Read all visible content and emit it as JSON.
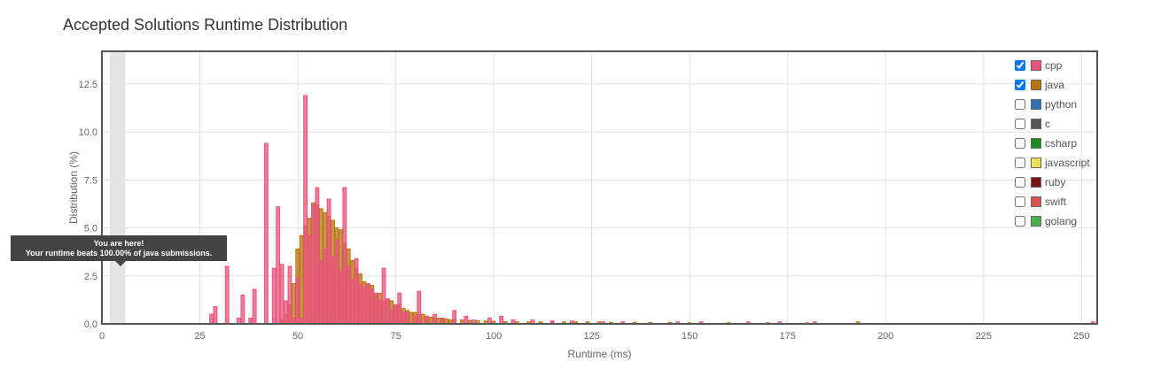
{
  "header": {
    "title": "Accepted Solutions Runtime Distribution"
  },
  "tooltip": {
    "line1": "You are here!",
    "line2": "Your runtime beats 100.00% of java submissions."
  },
  "legend": {
    "items": [
      {
        "label": "cpp",
        "color": "#e8537a",
        "checked": true
      },
      {
        "label": "java",
        "color": "#b8730f",
        "checked": true
      },
      {
        "label": "python",
        "color": "#2f6fb0",
        "checked": false
      },
      {
        "label": "c",
        "color": "#555555",
        "checked": false
      },
      {
        "label": "csharp",
        "color": "#1d8a1d",
        "checked": false
      },
      {
        "label": "javascript",
        "color": "#efe15a",
        "checked": false
      },
      {
        "label": "ruby",
        "color": "#7a1414",
        "checked": false
      },
      {
        "label": "swift",
        "color": "#d9534f",
        "checked": false
      },
      {
        "label": "golang",
        "color": "#4caf50",
        "checked": false
      }
    ]
  },
  "chart_data": {
    "type": "bar",
    "title": "Accepted Solutions Runtime Distribution",
    "xlabel": "Runtime (ms)",
    "ylabel": "Distribution (%)",
    "xlim": [
      0,
      254
    ],
    "ylim": [
      0,
      14.2
    ],
    "xticks": [
      "0",
      "25",
      "50",
      "75",
      "100",
      "125",
      "150",
      "175",
      "200",
      "225",
      "250"
    ],
    "yticks": [
      "0.0",
      "2.5",
      "5.0",
      "7.5",
      "10.0",
      "12.5"
    ],
    "grid": true,
    "legend_position": "top-right",
    "highlight_band": [
      2,
      6
    ],
    "bar_width": 1,
    "series": [
      {
        "name": "cpp",
        "color": "#e8537a",
        "x": [
          28,
          29,
          32,
          35,
          36,
          38,
          39,
          42,
          44,
          45,
          46,
          47,
          48,
          49,
          50,
          51,
          52,
          53,
          54,
          55,
          56,
          57,
          58,
          59,
          60,
          61,
          62,
          63,
          64,
          65,
          66,
          67,
          68,
          69,
          70,
          71,
          72,
          73,
          74,
          75,
          76,
          77,
          78,
          80,
          81,
          83,
          85,
          87,
          90,
          93,
          95,
          99,
          102,
          105,
          110,
          115,
          120,
          128,
          133,
          147,
          153,
          165,
          173,
          182,
          253
        ],
        "values": [
          0.5,
          0.9,
          3.0,
          0.3,
          1.5,
          0.3,
          1.8,
          9.4,
          2.9,
          6.1,
          3.1,
          1.2,
          3.0,
          0.3,
          2.4,
          0.3,
          11.9,
          4.6,
          6.2,
          7.1,
          3.3,
          3.9,
          6.5,
          3.5,
          4.4,
          2.8,
          7.1,
          3.0,
          2.3,
          3.4,
          2.1,
          1.9,
          2.1,
          1.8,
          1.6,
          1.2,
          2.9,
          1.3,
          0.7,
          1.0,
          1.6,
          0.6,
          0.6,
          0.4,
          1.7,
          0.4,
          0.5,
          0.3,
          0.7,
          0.4,
          0.2,
          0.3,
          0.4,
          0.2,
          0.2,
          0.15,
          0.15,
          0.1,
          0.1,
          0.1,
          0.1,
          0.1,
          0.1,
          0.1,
          0.1
        ]
      },
      {
        "name": "java",
        "color": "#b8730f",
        "x": [
          46,
          47,
          48,
          49,
          50,
          51,
          52,
          53,
          54,
          55,
          56,
          57,
          58,
          59,
          60,
          61,
          62,
          63,
          64,
          65,
          66,
          67,
          68,
          69,
          70,
          71,
          72,
          73,
          74,
          75,
          76,
          77,
          78,
          79,
          80,
          81,
          82,
          83,
          84,
          85,
          86,
          87,
          88,
          89,
          90,
          92,
          94,
          96,
          98,
          100,
          103,
          106,
          109,
          112,
          115,
          118,
          121,
          124,
          127,
          130,
          133,
          136,
          140,
          145,
          150,
          160,
          170,
          180,
          193
        ],
        "values": [
          0.2,
          0.5,
          1.0,
          2.1,
          3.9,
          4.6,
          5.1,
          5.5,
          6.3,
          6.2,
          6.0,
          5.8,
          5.6,
          5.4,
          5.0,
          4.9,
          4.2,
          3.9,
          3.3,
          2.9,
          2.6,
          2.2,
          2.1,
          2.0,
          1.5,
          1.6,
          1.2,
          1.3,
          1.2,
          0.9,
          1.0,
          0.8,
          0.7,
          0.6,
          0.6,
          0.5,
          0.5,
          0.4,
          0.35,
          0.3,
          0.3,
          0.25,
          0.25,
          0.22,
          0.2,
          0.2,
          0.18,
          0.16,
          0.15,
          0.14,
          0.12,
          0.11,
          0.1,
          0.1,
          0.1,
          0.1,
          0.1,
          0.1,
          0.1,
          0.08,
          0.08,
          0.08,
          0.07,
          0.07,
          0.06,
          0.06,
          0.06,
          0.05,
          0.1
        ]
      }
    ]
  }
}
